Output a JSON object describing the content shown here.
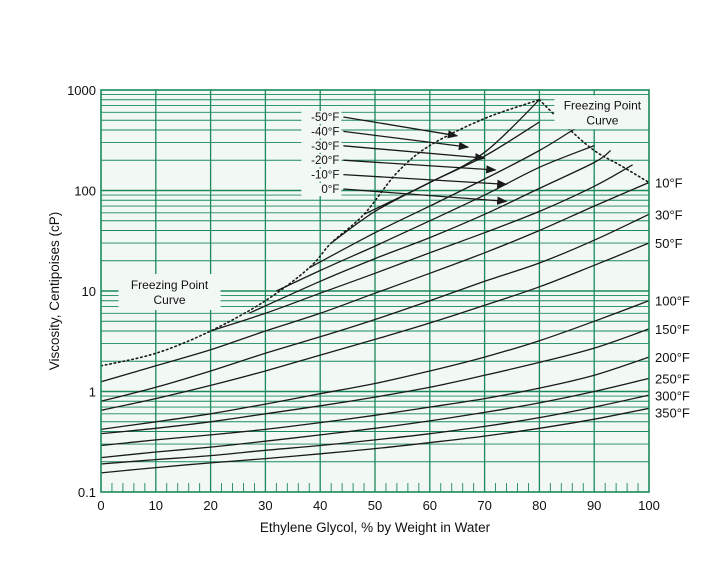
{
  "chart_data": {
    "type": "line",
    "title": "",
    "xlabel": "Ethylene Glycol, % by Weight in Water",
    "ylabel": "Viscosity, Centipoises (cP)",
    "xlim": [
      0,
      100
    ],
    "ylim": [
      0.1,
      1000
    ],
    "yscale": "log",
    "x_ticks": [
      0,
      10,
      20,
      30,
      40,
      50,
      60,
      70,
      80,
      90,
      100
    ],
    "y_ticks": [
      {
        "value": 0.1,
        "label": "0.1"
      },
      {
        "value": 1,
        "label": "1"
      },
      {
        "value": 10,
        "label": "10"
      },
      {
        "value": 100,
        "label": "100"
      },
      {
        "value": 1000,
        "label": "1000"
      }
    ],
    "grid": true,
    "colors": {
      "grid": "#1a8a5a",
      "plot_bg": "#f2f8f4",
      "curve": "#1a1a1a"
    },
    "series": [
      {
        "name": "-50°F",
        "label_side": "left",
        "points": [
          [
            48,
            58
          ],
          [
            60,
            120
          ],
          [
            70,
            240
          ],
          [
            80,
            800
          ]
        ]
      },
      {
        "name": "-40°F",
        "label_side": "left",
        "points": [
          [
            42,
            30
          ],
          [
            50,
            62
          ],
          [
            60,
            120
          ],
          [
            70,
            220
          ],
          [
            80,
            480
          ]
        ]
      },
      {
        "name": "-30°F",
        "label_side": "left",
        "points": [
          [
            38,
            17
          ],
          [
            50,
            38
          ],
          [
            60,
            70
          ],
          [
            70,
            130
          ],
          [
            80,
            250
          ],
          [
            87,
            430
          ]
        ]
      },
      {
        "name": "-20°F",
        "label_side": "left",
        "points": [
          [
            32,
            10
          ],
          [
            40,
            16
          ],
          [
            50,
            28
          ],
          [
            60,
            50
          ],
          [
            70,
            90
          ],
          [
            80,
            170
          ],
          [
            90,
            280
          ]
        ]
      },
      {
        "name": "-10°F",
        "label_side": "left",
        "points": [
          [
            27,
            6
          ],
          [
            40,
            12.5
          ],
          [
            50,
            21
          ],
          [
            60,
            34
          ],
          [
            70,
            58
          ],
          [
            80,
            105
          ],
          [
            90,
            190
          ],
          [
            93,
            250
          ]
        ]
      },
      {
        "name": "0°F",
        "label_side": "left",
        "points": [
          [
            20,
            4
          ],
          [
            30,
            6
          ],
          [
            40,
            9.5
          ],
          [
            50,
            15
          ],
          [
            60,
            24
          ],
          [
            70,
            38
          ],
          [
            80,
            62
          ],
          [
            90,
            110
          ],
          [
            97,
            180
          ]
        ]
      },
      {
        "name": "10°F",
        "label_side": "right",
        "points": [
          [
            0,
            1.25
          ],
          [
            10,
            1.8
          ],
          [
            20,
            2.6
          ],
          [
            30,
            4
          ],
          [
            40,
            6
          ],
          [
            50,
            9.5
          ],
          [
            60,
            15
          ],
          [
            70,
            24
          ],
          [
            80,
            40
          ],
          [
            90,
            70
          ],
          [
            100,
            120
          ]
        ]
      },
      {
        "name": "30°F",
        "label_side": "right",
        "points": [
          [
            0,
            0.8
          ],
          [
            10,
            1.1
          ],
          [
            20,
            1.6
          ],
          [
            30,
            2.4
          ],
          [
            40,
            3.5
          ],
          [
            50,
            5.2
          ],
          [
            60,
            8
          ],
          [
            70,
            12.5
          ],
          [
            80,
            19
          ],
          [
            90,
            32
          ],
          [
            100,
            58
          ]
        ]
      },
      {
        "name": "50°F",
        "label_side": "right",
        "points": [
          [
            0,
            0.65
          ],
          [
            10,
            0.85
          ],
          [
            20,
            1.15
          ],
          [
            30,
            1.6
          ],
          [
            40,
            2.3
          ],
          [
            50,
            3.3
          ],
          [
            60,
            4.8
          ],
          [
            70,
            7.2
          ],
          [
            80,
            11
          ],
          [
            90,
            18
          ],
          [
            100,
            30
          ]
        ]
      },
      {
        "name": "100°F",
        "label_side": "right",
        "points": [
          [
            0,
            0.42
          ],
          [
            10,
            0.5
          ],
          [
            20,
            0.6
          ],
          [
            30,
            0.75
          ],
          [
            40,
            0.95
          ],
          [
            50,
            1.2
          ],
          [
            60,
            1.6
          ],
          [
            70,
            2.2
          ],
          [
            80,
            3.2
          ],
          [
            90,
            5
          ],
          [
            100,
            8
          ]
        ]
      },
      {
        "name": "150°F",
        "label_side": "right",
        "points": [
          [
            0,
            0.38
          ],
          [
            10,
            0.43
          ],
          [
            20,
            0.5
          ],
          [
            30,
            0.6
          ],
          [
            40,
            0.72
          ],
          [
            50,
            0.88
          ],
          [
            60,
            1.1
          ],
          [
            70,
            1.45
          ],
          [
            80,
            1.95
          ],
          [
            90,
            2.7
          ],
          [
            100,
            4.2
          ]
        ]
      },
      {
        "name": "200°F",
        "label_side": "right",
        "points": [
          [
            0,
            0.29
          ],
          [
            10,
            0.33
          ],
          [
            20,
            0.37
          ],
          [
            30,
            0.42
          ],
          [
            40,
            0.49
          ],
          [
            50,
            0.58
          ],
          [
            60,
            0.7
          ],
          [
            70,
            0.85
          ],
          [
            80,
            1.08
          ],
          [
            90,
            1.45
          ],
          [
            100,
            2.2
          ]
        ]
      },
      {
        "name": "250°F",
        "label_side": "right",
        "points": [
          [
            0,
            0.22
          ],
          [
            10,
            0.25
          ],
          [
            20,
            0.28
          ],
          [
            30,
            0.32
          ],
          [
            40,
            0.37
          ],
          [
            50,
            0.43
          ],
          [
            60,
            0.51
          ],
          [
            70,
            0.62
          ],
          [
            80,
            0.77
          ],
          [
            90,
            1.0
          ],
          [
            100,
            1.35
          ]
        ]
      },
      {
        "name": "300°F",
        "label_side": "right",
        "points": [
          [
            0,
            0.19
          ],
          [
            10,
            0.21
          ],
          [
            20,
            0.23
          ],
          [
            30,
            0.26
          ],
          [
            40,
            0.29
          ],
          [
            50,
            0.33
          ],
          [
            60,
            0.38
          ],
          [
            70,
            0.45
          ],
          [
            80,
            0.55
          ],
          [
            90,
            0.7
          ],
          [
            100,
            0.92
          ]
        ]
      },
      {
        "name": "350°F",
        "label_side": "right",
        "points": [
          [
            0,
            0.155
          ],
          [
            10,
            0.175
          ],
          [
            20,
            0.195
          ],
          [
            30,
            0.215
          ],
          [
            40,
            0.24
          ],
          [
            50,
            0.27
          ],
          [
            60,
            0.31
          ],
          [
            70,
            0.36
          ],
          [
            80,
            0.43
          ],
          [
            90,
            0.53
          ],
          [
            100,
            0.68
          ]
        ]
      }
    ],
    "freezing_point_curves": [
      {
        "name": "left",
        "points": [
          [
            0,
            1.8
          ],
          [
            10,
            2.4
          ],
          [
            20,
            4
          ],
          [
            30,
            8
          ],
          [
            38,
            17
          ],
          [
            42,
            30
          ],
          [
            48,
            58
          ],
          [
            54,
            150
          ],
          [
            60,
            280
          ],
          [
            70,
            520
          ],
          [
            80,
            800
          ]
        ]
      },
      {
        "name": "right",
        "points": [
          [
            80,
            800
          ],
          [
            85,
            430
          ],
          [
            90,
            250
          ],
          [
            95,
            175
          ],
          [
            100,
            120
          ]
        ]
      }
    ],
    "annotations": [
      {
        "text_lines": [
          "Freezing Point",
          "Curve"
        ],
        "position": "left-middle"
      },
      {
        "text_lines": [
          "Freezing Point",
          "Curve"
        ],
        "position": "top-right"
      }
    ],
    "arrows": [
      {
        "series": "-50°F",
        "to": [
          65,
          350
        ]
      },
      {
        "series": "-40°F",
        "to": [
          67,
          270
        ]
      },
      {
        "series": "-30°F",
        "to": [
          70,
          210
        ]
      },
      {
        "series": "-20°F",
        "to": [
          72,
          160
        ]
      },
      {
        "series": "-10°F",
        "to": [
          74,
          115
        ]
      },
      {
        "series": "0°F",
        "to": [
          74,
          78
        ]
      }
    ]
  }
}
